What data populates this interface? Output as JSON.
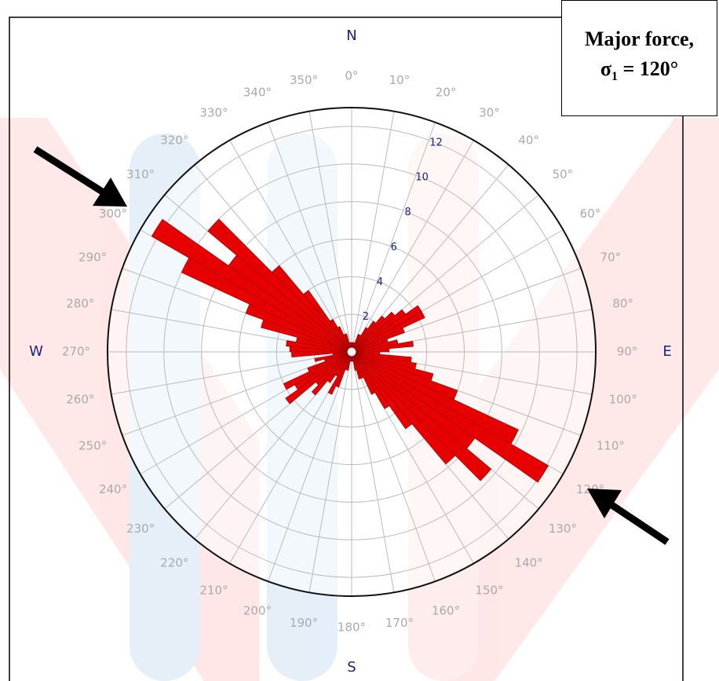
{
  "chart_data": {
    "type": "rose",
    "annotation": {
      "text": "Major force, σ",
      "subscript": "1",
      "text_after": " = 120°"
    },
    "cardinal_labels": [
      "N",
      "E",
      "S",
      "W"
    ],
    "x": [
      0,
      5,
      10,
      15,
      20,
      25,
      30,
      35,
      40,
      45,
      50,
      55,
      60,
      65,
      70,
      75,
      80,
      85,
      90,
      95,
      100,
      105,
      110,
      115,
      120,
      125,
      130,
      135,
      140,
      145,
      150,
      155,
      160,
      165,
      170,
      175,
      180,
      185,
      190,
      195,
      200,
      205,
      210,
      215,
      220,
      225,
      230,
      235,
      240,
      245,
      250,
      255,
      260,
      265,
      270,
      275,
      280,
      285,
      290,
      295,
      300,
      305,
      310,
      315,
      320,
      325,
      330,
      335,
      340,
      345,
      350,
      355
    ],
    "values": [
      0.5,
      0.5,
      0.5,
      0.5,
      1,
      1,
      1.5,
      2,
      2.5,
      3,
      3.5,
      4.3,
      4.3,
      3,
      2,
      2.5,
      3.3,
      2,
      1.5,
      3.2,
      3.5,
      4.5,
      6,
      9.8,
      12.1,
      8,
      9.7,
      7.8,
      5,
      3.5,
      2.5,
      1.5,
      1.5,
      1,
      0.5,
      0.5,
      0.5,
      0.5,
      1,
      1,
      2,
      2.5,
      1.5,
      2,
      3,
      2.5,
      4.3,
      3.5,
      4,
      2.5,
      1.5,
      2,
      1,
      3.2,
      3.3,
      3.5,
      3,
      5,
      6,
      10,
      12.3,
      8,
      10,
      6,
      4,
      2,
      1.5,
      1,
      1,
      0.5,
      0.5,
      0.5
    ],
    "color": "#e60000",
    "ylim": [
      0,
      13
    ],
    "yticks": [
      2,
      4,
      6,
      8,
      10,
      12
    ],
    "xticks": [
      {
        "value": 0,
        "label": "0°"
      },
      {
        "value": 10,
        "label": "10°"
      },
      {
        "value": 20,
        "label": "20°"
      },
      {
        "value": 30,
        "label": "30°"
      },
      {
        "value": 40,
        "label": "40°"
      },
      {
        "value": 50,
        "label": "50°"
      },
      {
        "value": 60,
        "label": "60°"
      },
      {
        "value": 70,
        "label": "70°"
      },
      {
        "value": 80,
        "label": "80°"
      },
      {
        "value": 90,
        "label": "90°"
      },
      {
        "value": 100,
        "label": "100°"
      },
      {
        "value": 110,
        "label": "110°"
      },
      {
        "value": 120,
        "label": "120°"
      },
      {
        "value": 130,
        "label": "130°"
      },
      {
        "value": 140,
        "label": "140°"
      },
      {
        "value": 150,
        "label": "150°"
      },
      {
        "value": 160,
        "label": "160°"
      },
      {
        "value": 170,
        "label": "170°"
      },
      {
        "value": 180,
        "label": "180°"
      },
      {
        "value": 190,
        "label": "190°"
      },
      {
        "value": 200,
        "label": "200°"
      },
      {
        "value": 210,
        "label": "210°"
      },
      {
        "value": 220,
        "label": "220°"
      },
      {
        "value": 230,
        "label": "230°"
      },
      {
        "value": 240,
        "label": "240°"
      },
      {
        "value": 250,
        "label": "250°"
      },
      {
        "value": 260,
        "label": "260°"
      },
      {
        "value": 270,
        "label": "270°"
      },
      {
        "value": 280,
        "label": "280°"
      },
      {
        "value": 290,
        "label": "290°"
      },
      {
        "value": 300,
        "label": "300°"
      },
      {
        "value": 310,
        "label": "310°"
      },
      {
        "value": 320,
        "label": "320°"
      },
      {
        "value": 330,
        "label": "330°"
      },
      {
        "value": 340,
        "label": "340°"
      },
      {
        "value": 350,
        "label": "350°"
      }
    ],
    "grid": true
  }
}
